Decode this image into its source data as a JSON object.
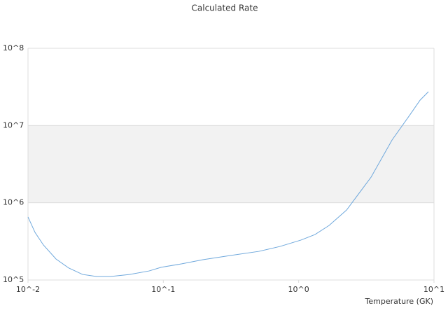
{
  "chart_data": {
    "type": "line",
    "title": "Calculated Rate",
    "x_label": "Temperature (GK)",
    "xscale": "log",
    "yscale": "log",
    "grid": true,
    "alternate_bands": true,
    "xlim": [
      0.01,
      10
    ],
    "ylim": [
      100000,
      100000000
    ],
    "xticks": [
      {
        "value": 0.01,
        "label": "10^-2"
      },
      {
        "value": 0.1,
        "label": "10^-1"
      },
      {
        "value": 1,
        "label": "10^0"
      },
      {
        "value": 10,
        "label": "10^1"
      }
    ],
    "yticks": [
      {
        "value": 100000,
        "label": "10^5"
      },
      {
        "value": 1000000,
        "label": "10^6"
      },
      {
        "value": 10000000,
        "label": "10^7"
      },
      {
        "value": 100000000,
        "label": "10^8"
      }
    ],
    "x": [
      0.01,
      0.01127,
      0.013,
      0.0161,
      0.02,
      0.0253,
      0.0321,
      0.0407,
      0.0562,
      0.0785,
      0.0962,
      0.137,
      0.196,
      0.316,
      0.509,
      0.728,
      1.04,
      1.32,
      1.68,
      2.26,
      3.43,
      4.9,
      6.59,
      7.89,
      9.1
    ],
    "series": [
      {
        "color": "#6fa8dc",
        "values": [
          655000,
          413000,
          284000,
          187000,
          143000,
          118000,
          111000,
          111000,
          118000,
          131000,
          146000,
          162000,
          183000,
          208000,
          235000,
          272000,
          329000,
          388000,
          509000,
          806000,
          2150000,
          6500000,
          13500000,
          21300000,
          27400000
        ]
      }
    ]
  }
}
